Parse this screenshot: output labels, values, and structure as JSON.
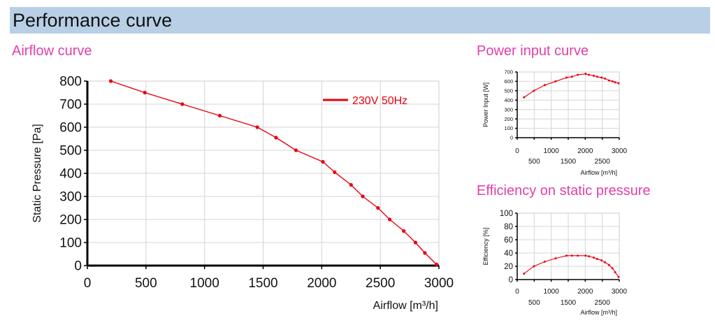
{
  "page": {
    "title": "Performance curve",
    "accent_color": "#e040a8",
    "header_color": "#b8cfe6",
    "curve_color": "#e8000e"
  },
  "chart_data": [
    {
      "type": "line",
      "title": "Airflow curve",
      "xlabel": "Airflow [m³/h]",
      "ylabel": "Static Pressure [Pa]",
      "xlim": [
        0,
        3000
      ],
      "ylim": [
        0,
        800
      ],
      "x_ticks": [
        "0",
        "500",
        "1000",
        "1500",
        "2000",
        "2500",
        "3000"
      ],
      "y_ticks": [
        "0",
        "100",
        "200",
        "300",
        "400",
        "500",
        "600",
        "700",
        "800"
      ],
      "legend": "top-right",
      "grid": true,
      "series": [
        {
          "name": "230V 50Hz",
          "x": [
            200,
            490,
            810,
            1130,
            1450,
            1610,
            1780,
            2010,
            2110,
            2250,
            2350,
            2480,
            2580,
            2700,
            2800,
            2880,
            2980
          ],
          "y": [
            800,
            750,
            700,
            650,
            600,
            555,
            500,
            450,
            405,
            350,
            300,
            250,
            200,
            150,
            100,
            55,
            5
          ]
        }
      ]
    },
    {
      "type": "line",
      "title": "Power input curve",
      "xlabel": "Airflow [m³/h]",
      "ylabel": "Power Input [W]",
      "xlim": [
        0,
        3000
      ],
      "ylim": [
        0,
        700
      ],
      "x_ticks": [
        "0",
        "500",
        "1000",
        "1500",
        "2000",
        "2500",
        "3000"
      ],
      "y_ticks": [
        "0",
        "100",
        "200",
        "300",
        "400",
        "500",
        "600",
        "700"
      ],
      "grid": true,
      "series": [
        {
          "x": [
            200,
            490,
            810,
            1130,
            1450,
            1610,
            1780,
            2010,
            2110,
            2250,
            2350,
            2480,
            2580,
            2700,
            2800,
            2880,
            2980
          ],
          "y": [
            430,
            500,
            560,
            600,
            640,
            650,
            670,
            680,
            670,
            660,
            650,
            640,
            630,
            610,
            600,
            590,
            580
          ]
        }
      ]
    },
    {
      "type": "line",
      "title": "Efficiency on static pressure",
      "xlabel": "Airflow [m³/h]",
      "ylabel": "Efficiency [%]",
      "xlim": [
        0,
        3000
      ],
      "ylim": [
        0,
        100
      ],
      "x_ticks": [
        "0",
        "500",
        "1000",
        "1500",
        "2000",
        "2500",
        "3000"
      ],
      "y_ticks": [
        "0",
        "20",
        "40",
        "60",
        "80",
        "100"
      ],
      "grid": true,
      "series": [
        {
          "x": [
            200,
            490,
            810,
            1130,
            1450,
            1610,
            1780,
            2010,
            2110,
            2250,
            2350,
            2480,
            2580,
            2700,
            2800,
            2880,
            2980
          ],
          "y": [
            9,
            20,
            27,
            32,
            36,
            36,
            36,
            36,
            35,
            33,
            31,
            29,
            26,
            22,
            17,
            11,
            4
          ]
        }
      ]
    }
  ]
}
